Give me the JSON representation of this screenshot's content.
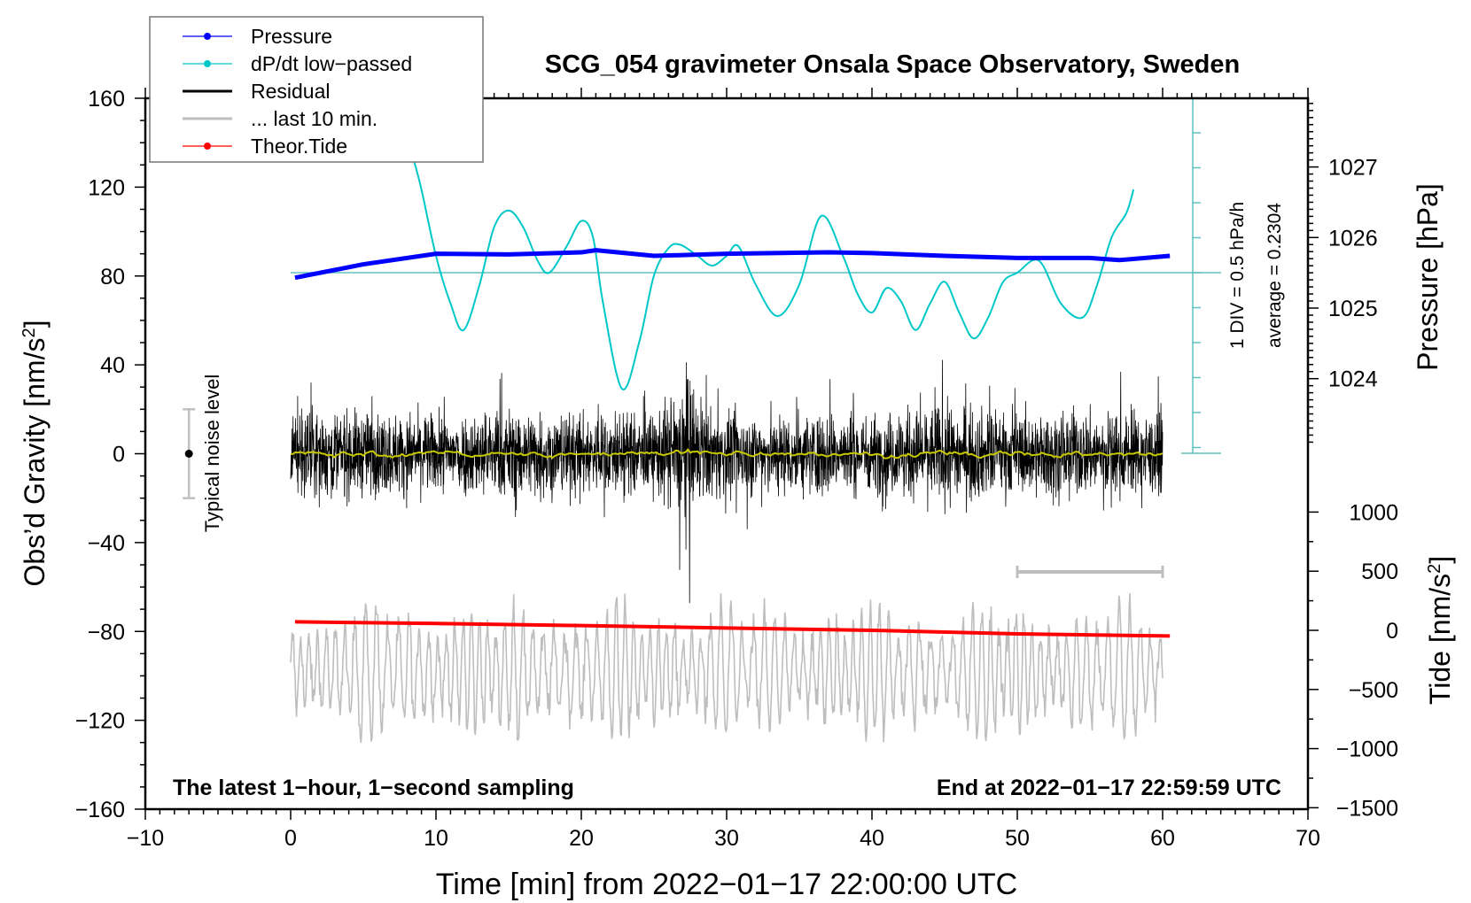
{
  "chart_data": {
    "type": "line",
    "title": "SCG_054 gravimeter Onsala Space Observatory, Sweden",
    "xlabel": "Time [min] from 2022−01−17 22:00:00 UTC",
    "ylabel": "Obs’d Gravity [nm/s²]",
    "y2label": "Pressure [hPa]",
    "y3label": "Tide [nm/s²]",
    "xlim": [
      -10,
      70
    ],
    "ylim": [
      -160,
      160
    ],
    "pressure_lim_ticks": [
      1024,
      1027
    ],
    "tide_lim": [
      -1500,
      1000
    ],
    "x_ticks": [
      "−10",
      "0",
      "10",
      "20",
      "30",
      "40",
      "50",
      "60",
      "70"
    ],
    "y_ticks": [
      "160",
      "120",
      "80",
      "40",
      "0",
      "−40",
      "−80",
      "−120",
      "−160"
    ],
    "pressure_ticks": [
      "1027",
      "1026",
      "1025",
      "1024"
    ],
    "tide_ticks": [
      "1000",
      "500",
      "0",
      "−500",
      "−1000",
      "−1500"
    ],
    "legend": {
      "placement": "top-left",
      "entries": [
        {
          "label": "Pressure",
          "color": "#0000ff",
          "marker": true
        },
        {
          "label": "dP/dt low−passed",
          "color": "#00c8c8",
          "marker": true
        },
        {
          "label": "Residual",
          "color": "#000000",
          "marker": false
        },
        {
          "label": "... last 10 min.",
          "color": "#bebebe",
          "marker": false
        },
        {
          "label": "Theor.Tide",
          "color": "#ff0000",
          "marker": true
        }
      ]
    },
    "annotations": {
      "left_bottom": "The latest 1−hour, 1−second sampling",
      "right_bottom": "End at 2022−01−17 22:59:59 UTC",
      "noise_label": "Typical noise level",
      "div_label": "1 DIV = 0.5 hPa/h",
      "average_label": "average = 0.2304"
    },
    "noise_level": {
      "x": -7,
      "center": 0,
      "half_range": 20
    },
    "last10_bar": {
      "x_start": 50,
      "x_end": 60
    },
    "pressure": {
      "x": [
        0.3,
        5,
        10,
        15,
        20,
        21,
        25,
        30,
        37,
        40,
        45,
        50,
        55,
        57,
        60.5
      ],
      "hpa": [
        1025.43,
        1025.62,
        1025.77,
        1025.76,
        1025.79,
        1025.82,
        1025.74,
        1025.77,
        1025.79,
        1025.78,
        1025.74,
        1025.71,
        1025.71,
        1025.68,
        1025.74
      ]
    },
    "dpdt": {
      "unit_per_div": 0.5,
      "x": [
        8.5,
        9,
        10,
        11,
        11.9,
        13,
        14,
        15,
        16,
        17,
        17.8,
        19,
        20,
        20.8,
        21.5,
        22.8,
        24,
        25,
        26,
        26.8,
        28,
        29,
        30,
        30.8,
        32,
        33.5,
        35,
        36.5,
        38,
        39,
        40,
        41,
        42,
        43,
        44,
        45,
        46,
        47,
        48,
        49,
        50,
        51.5,
        53,
        54.5,
        55.5,
        56.5,
        57.5,
        58
      ],
      "hpa_per_h": [
        1.59,
        1.19,
        0.24,
        -0.44,
        -0.82,
        -0.17,
        0.65,
        0.89,
        0.65,
        0.17,
        0.0,
        0.38,
        0.74,
        0.51,
        -0.44,
        -1.66,
        -0.98,
        -0.04,
        0.35,
        0.4,
        0.24,
        0.1,
        0.24,
        0.38,
        -0.17,
        -0.62,
        -0.17,
        0.81,
        0.24,
        -0.3,
        -0.57,
        -0.22,
        -0.41,
        -0.82,
        -0.44,
        -0.13,
        -0.57,
        -0.94,
        -0.64,
        -0.14,
        0.0,
        0.17,
        -0.44,
        -0.64,
        -0.17,
        0.51,
        0.85,
        1.19
      ]
    },
    "tide": {
      "x": [
        0.3,
        10,
        20,
        30,
        40,
        50,
        60.5
      ],
      "nm_s2": [
        72,
        58,
        40,
        20,
        0,
        -30,
        -48
      ]
    },
    "residual": {
      "x_range": [
        0,
        60
      ],
      "envelope_x": [
        0,
        5,
        10,
        15,
        20,
        25,
        26.5,
        27.2,
        28,
        30,
        35,
        40,
        45,
        50,
        55,
        60
      ],
      "envelope_amp": [
        28,
        26,
        24,
        28,
        25,
        24,
        40,
        55,
        30,
        25,
        26,
        24,
        30,
        25,
        26,
        24
      ]
    },
    "last10min_curve": {
      "x_range": [
        0,
        60
      ],
      "center": -98,
      "amplitude": 28
    }
  }
}
